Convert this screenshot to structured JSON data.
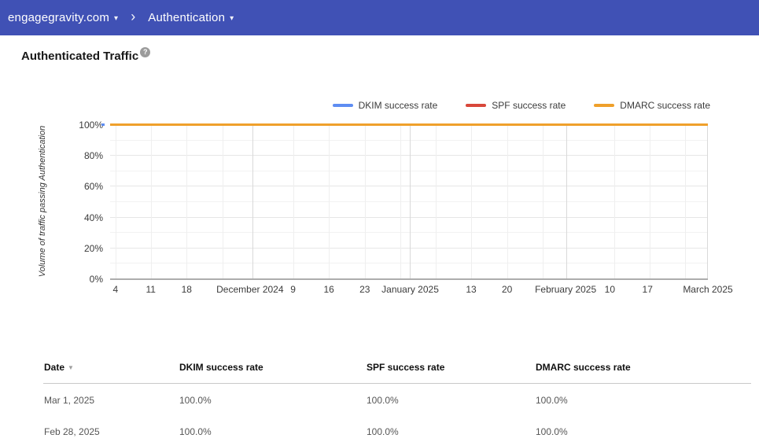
{
  "nav": {
    "domain_label": "engagegravity.com",
    "section_label": "Authentication",
    "separator": "›",
    "caret": "▾",
    "bg_color": "#4051b5"
  },
  "page": {
    "title": "Authenticated Traffic",
    "help_icon_glyph": "?"
  },
  "chart_data": {
    "type": "line",
    "title": "Authenticated Traffic",
    "xlabel": "",
    "ylabel": "Volume of traffic passing Authentication",
    "ylim": [
      0,
      100
    ],
    "grid": "on",
    "legend_position": "top-right",
    "y_tick_labels": [
      "100%",
      "80%",
      "60%",
      "40%",
      "20%",
      "0%"
    ],
    "x_ticks": [
      {
        "label": "4",
        "pos": 0.9,
        "month": false
      },
      {
        "label": "11",
        "pos": 6.8,
        "month": false
      },
      {
        "label": "18",
        "pos": 12.8,
        "month": false
      },
      {
        "label": "December 2024",
        "pos": 23.4,
        "month": true
      },
      {
        "label": "9",
        "pos": 30.6,
        "month": false
      },
      {
        "label": "16",
        "pos": 36.6,
        "month": false
      },
      {
        "label": "23",
        "pos": 42.6,
        "month": false
      },
      {
        "label": "January 2025",
        "pos": 50.2,
        "month": true
      },
      {
        "label": "13",
        "pos": 60.4,
        "month": false
      },
      {
        "label": "20",
        "pos": 66.4,
        "month": false
      },
      {
        "label": "February 2025",
        "pos": 76.2,
        "month": true
      },
      {
        "label": "10",
        "pos": 83.6,
        "month": false
      },
      {
        "label": "17",
        "pos": 89.9,
        "month": false
      },
      {
        "label": "March 2025",
        "pos": 100,
        "month": true
      }
    ],
    "week_gridlines_pct": [
      0.9,
      6.8,
      12.8,
      18.8,
      30.6,
      36.6,
      42.6,
      48.6,
      54.5,
      60.4,
      66.4,
      72.4,
      84.3,
      90.2,
      96.2
    ],
    "month_gridlines_pct": [
      24.0,
      50.2,
      76.5,
      100
    ],
    "series": [
      {
        "name": "DKIM success rate",
        "color": "#5e8df2",
        "value_pct": 100
      },
      {
        "name": "SPF success rate",
        "color": "#d8473a",
        "value_pct": 100
      },
      {
        "name": "DMARC success rate",
        "color": "#efa02b",
        "value_pct": 100
      }
    ],
    "description": "All three series are flat at 100% across the full date range (Nov 2024 – Mar 2025); the DMARC (orange) line is drawn on top."
  },
  "table": {
    "headers": [
      {
        "label": "Date",
        "sorted": true
      },
      {
        "label": "DKIM success rate",
        "sorted": false
      },
      {
        "label": "SPF success rate",
        "sorted": false
      },
      {
        "label": "DMARC success rate",
        "sorted": false
      }
    ],
    "sort_icon": "▼",
    "rows": [
      {
        "cells": [
          "Mar 1, 2025",
          "100.0%",
          "100.0%",
          "100.0%"
        ]
      },
      {
        "cells": [
          "Feb 28, 2025",
          "100.0%",
          "100.0%",
          "100.0%"
        ]
      }
    ]
  }
}
